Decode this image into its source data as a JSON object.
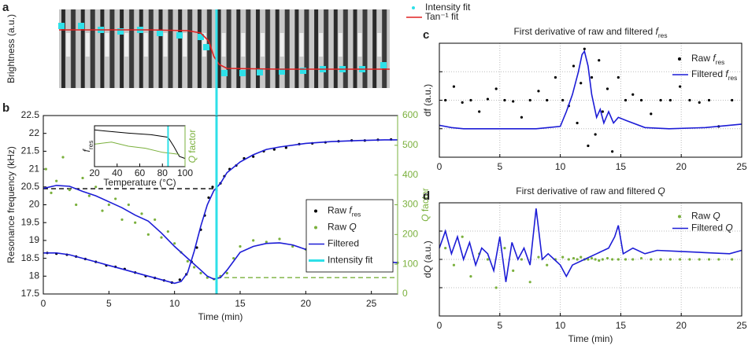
{
  "chart_data": [
    {
      "type": "line",
      "label": "a",
      "ylabel": "Brightness (a.u.)",
      "xlim": [
        0,
        27
      ],
      "ylim": [
        0,
        1
      ],
      "legend": "outside upper right",
      "series": [
        {
          "name": "Intensity fit",
          "type": "scatter",
          "marker": "square",
          "color": "#2ee0e8",
          "x": [
            1.38,
            2.88,
            4.38,
            5.88,
            7.38,
            8.88,
            10.38,
            12.0,
            12.42,
            13.8,
            15.18,
            16.5,
            18.18,
            19.8,
            21.3,
            22.8,
            24.3,
            25.92
          ],
          "values": [
            0.79,
            0.79,
            0.74,
            0.72,
            0.74,
            0.7,
            0.67,
            0.65,
            0.52,
            0.19,
            0.19,
            0.2,
            0.21,
            0.22,
            0.24,
            0.24,
            0.24,
            0.29
          ]
        },
        {
          "name": "Tan⁻¹ fit",
          "type": "line",
          "color": "#e02020",
          "x": [
            1.2,
            8,
            11,
            12,
            12.6,
            13,
            13.4,
            14,
            18,
            26.4
          ],
          "values": [
            0.74,
            0.74,
            0.73,
            0.7,
            0.6,
            0.4,
            0.3,
            0.25,
            0.24,
            0.24
          ]
        }
      ]
    },
    {
      "type": "line",
      "label": "b",
      "xlabel": "Time (min)",
      "ylabel": "Resonance frequency (kHz)",
      "y2label": [
        {
          "text": "Q",
          "italic": true
        },
        " factor"
      ],
      "y2color": "#7ab03c",
      "xlim": [
        0,
        27
      ],
      "xticks": [
        0,
        5,
        10,
        15,
        20,
        25
      ],
      "ylim": [
        17.5,
        22.5
      ],
      "yticks": [
        17.5,
        18,
        18.5,
        19,
        19.5,
        20,
        20.5,
        21,
        21.5,
        22,
        22.5
      ],
      "y2lim": [
        0,
        600
      ],
      "y2ticks": [
        0,
        100,
        200,
        300,
        400,
        500,
        600
      ],
      "legend": "lower right",
      "series": [
        {
          "name": [
            "Raw ",
            {
              "text": "f",
              "italic": true
            },
            {
              "text": "res",
              "sub": true
            }
          ],
          "type": "scatter",
          "color": "#000000",
          "x": [
            0.3,
            1,
            1.8,
            2.5,
            3.2,
            4,
            4.8,
            5.5,
            6.2,
            7,
            7.8,
            8.5,
            9.2,
            9.8,
            10.4,
            10.9,
            11.3,
            11.7,
            12,
            12.3,
            12.6,
            12.9,
            13.2,
            13.5,
            13.8,
            14.2,
            14.7,
            15.3,
            16,
            16.8,
            17.6,
            18.5,
            19.5,
            20.5,
            21.5,
            22.5,
            23.5,
            24.5,
            25.5,
            26.5
          ],
          "values": [
            18.65,
            18.63,
            18.6,
            18.55,
            18.48,
            18.4,
            18.3,
            18.26,
            18.2,
            18.1,
            18.0,
            17.95,
            17.88,
            17.82,
            17.9,
            18.05,
            18.4,
            18.8,
            19.3,
            19.7,
            20.2,
            20.5,
            20.4,
            20.6,
            20.8,
            21.0,
            21.1,
            21.3,
            21.35,
            21.5,
            21.55,
            21.6,
            21.7,
            21.72,
            21.75,
            21.78,
            21.8,
            21.8,
            21.82,
            21.83
          ]
        },
        {
          "name": [
            "Raw ",
            {
              "text": "Q",
              "italic": true
            }
          ],
          "type": "scatter",
          "color": "#7ab03c",
          "axis": "y2",
          "x": [
            0.2,
            0.6,
            1,
            1.5,
            2,
            2.5,
            3,
            3.5,
            4,
            4.5,
            5,
            5.5,
            6,
            6.5,
            7,
            7.5,
            8,
            8.5,
            9,
            9.5,
            10,
            10.5,
            11,
            11.5,
            12,
            12.5,
            13,
            13.5,
            14,
            14.5,
            15,
            16,
            17,
            18,
            19,
            20,
            21,
            22,
            23,
            24,
            25,
            26,
            27
          ],
          "values": [
            420,
            340,
            380,
            460,
            350,
            300,
            390,
            330,
            360,
            280,
            300,
            320,
            250,
            300,
            240,
            270,
            200,
            250,
            190,
            210,
            170,
            140,
            110,
            90,
            70,
            55,
            50,
            60,
            70,
            120,
            160,
            180,
            175,
            185,
            160,
            150,
            140,
            130,
            125,
            120,
            115,
            110,
            105
          ]
        },
        {
          "name": "Filtered",
          "type": "line",
          "color": "#1c1cd6",
          "x": [
            0,
            1,
            2,
            3,
            4,
            5,
            6,
            7,
            8,
            9,
            10,
            10.5,
            11,
            11.5,
            12,
            12.5,
            13,
            13.5,
            14,
            15,
            16,
            17,
            18,
            20,
            22,
            24,
            26,
            27
          ],
          "values": [
            18.65,
            18.65,
            18.6,
            18.5,
            18.4,
            18.3,
            18.2,
            18.1,
            18.0,
            17.9,
            17.8,
            17.85,
            18.1,
            18.7,
            19.4,
            20.0,
            20.4,
            20.6,
            20.9,
            21.2,
            21.4,
            21.55,
            21.62,
            21.72,
            21.77,
            21.8,
            21.82,
            21.82
          ]
        },
        {
          "type": "line",
          "color": "#1c1cd6",
          "axis": "y2",
          "x": [
            0,
            1,
            2,
            3,
            4,
            5,
            6,
            7,
            8,
            9,
            10,
            11,
            12,
            12.5,
            13,
            13.5,
            14,
            15,
            16,
            17,
            18,
            19,
            20,
            22,
            24,
            26,
            27
          ],
          "values": [
            355,
            365,
            362,
            345,
            330,
            310,
            290,
            265,
            245,
            205,
            160,
            120,
            80,
            60,
            50,
            55,
            80,
            140,
            160,
            170,
            172,
            165,
            150,
            130,
            120,
            110,
            105
          ]
        },
        {
          "name": "Intensity fit",
          "type": "vline",
          "color": "#2ee0e8",
          "x": [
            13.2
          ]
        }
      ],
      "refs": [
        {
          "axis": "y",
          "value": 20.45,
          "x": [
            0,
            13.2
          ],
          "color": "#000000"
        },
        {
          "axis": "y2",
          "value": 55,
          "x": [
            13.2,
            27
          ],
          "color": "#7ab03c"
        }
      ]
    },
    {
      "type": "line",
      "xlabel": "Temperature (°C)",
      "ylabel": [
        {
          "text": "f",
          "italic": true
        },
        {
          "text": "res",
          "sub": true
        }
      ],
      "y2label": [
        {
          "text": "Q",
          "italic": true
        },
        " factor"
      ],
      "y2color": "#7ab03c",
      "xlim": [
        20,
        100
      ],
      "xticks": [
        20,
        40,
        60,
        80,
        100
      ],
      "ylim": [
        0,
        1
      ],
      "series": [
        {
          "type": "line",
          "color": "#000000",
          "x": [
            20,
            30,
            50,
            70,
            85,
            90,
            95,
            100
          ],
          "values": [
            0.9,
            0.87,
            0.82,
            0.78,
            0.72,
            0.5,
            0.25,
            0.2
          ]
        },
        {
          "type": "line",
          "color": "#7ab03c",
          "x": [
            20,
            35,
            50,
            65,
            80,
            95
          ],
          "values": [
            0.55,
            0.6,
            0.5,
            0.45,
            0.35,
            0.3
          ]
        },
        {
          "type": "vline",
          "color": "#2ee0e8",
          "x": [
            85
          ]
        }
      ]
    },
    {
      "type": "line",
      "label": "c",
      "title": [
        "First derivative of raw and filtered ",
        {
          "text": "f",
          "italic": true
        },
        {
          "text": "res",
          "sub": true
        }
      ],
      "ylabel": "df (a.u.)",
      "xlim": [
        0,
        25
      ],
      "xticks": [
        0,
        5,
        10,
        15,
        20,
        25
      ],
      "ylim": [
        0,
        1
      ],
      "yticks": [
        0.25,
        0.5,
        0.75
      ],
      "grid": true,
      "ytick_labels": false,
      "legend": "upper right",
      "series": [
        {
          "name": [
            "Raw ",
            {
              "text": "f",
              "italic": true
            },
            {
              "text": "res",
              "sub": true
            }
          ],
          "type": "scatter",
          "color": "#000000",
          "x": [
            0.5,
            1.2,
            1.9,
            2.6,
            3.3,
            4,
            4.7,
            5.4,
            6.1,
            6.8,
            7.5,
            8.2,
            8.9,
            9.6,
            10.2,
            10.7,
            11.1,
            11.4,
            11.7,
            12,
            12.3,
            12.6,
            12.9,
            13.2,
            13.5,
            13.9,
            14.3,
            14.8,
            15.4,
            16,
            16.7,
            17.5,
            18.3,
            19.1,
            19.9,
            20.7,
            21.5,
            22.3,
            23.1,
            24.2
          ],
          "values": [
            0.5,
            0.62,
            0.48,
            0.5,
            0.4,
            0.51,
            0.6,
            0.5,
            0.49,
            0.35,
            0.5,
            0.58,
            0.5,
            0.7,
            0.5,
            0.45,
            0.8,
            0.3,
            0.65,
            0.95,
            0.1,
            0.7,
            0.2,
            0.85,
            0.4,
            0.6,
            0.05,
            0.7,
            0.5,
            0.55,
            0.5,
            0.38,
            0.5,
            0.5,
            0.62,
            0.5,
            0.48,
            0.5,
            0.27,
            0.5
          ]
        },
        {
          "name": [
            "Filtered ",
            {
              "text": "f",
              "italic": true
            },
            {
              "text": "res",
              "sub": true
            }
          ],
          "type": "line",
          "color": "#1c1cd6",
          "x": [
            0,
            1,
            2,
            4,
            6,
            8,
            9,
            10,
            10.5,
            11,
            11.5,
            11.8,
            12,
            12.3,
            12.6,
            13,
            13.3,
            13.6,
            14,
            14.4,
            14.8,
            15.5,
            17,
            19,
            22,
            25
          ],
          "values": [
            0.28,
            0.26,
            0.25,
            0.25,
            0.25,
            0.25,
            0.26,
            0.27,
            0.4,
            0.55,
            0.75,
            0.9,
            0.93,
            0.8,
            0.55,
            0.35,
            0.42,
            0.3,
            0.4,
            0.3,
            0.35,
            0.32,
            0.26,
            0.25,
            0.26,
            0.29
          ]
        }
      ]
    },
    {
      "type": "line",
      "label": "d",
      "title": [
        "First derivative of raw and filtered ",
        {
          "text": "Q",
          "italic": true
        }
      ],
      "xlabel": "Time (min)",
      "ylabel": [
        "d",
        {
          "text": "Q",
          "italic": true
        },
        " (a.u.)"
      ],
      "xlim": [
        0,
        25
      ],
      "xticks": [
        0,
        5,
        10,
        15,
        20,
        25
      ],
      "ylim": [
        0,
        1
      ],
      "yticks": [
        0.25,
        0.5,
        0.75
      ],
      "grid": true,
      "ytick_labels": false,
      "legend": "upper right",
      "series": [
        {
          "name": [
            "Raw ",
            {
              "text": "Q",
              "italic": true
            }
          ],
          "type": "scatter",
          "color": "#7ab03c",
          "x": [
            0.5,
            1.2,
            1.9,
            2.6,
            3.3,
            4,
            4.7,
            5.4,
            6.1,
            6.8,
            7.5,
            8.2,
            8.9,
            9.6,
            10.2,
            10.7,
            11.1,
            11.4,
            11.7,
            12,
            12.3,
            12.6,
            12.9,
            13.2,
            13.5,
            13.9,
            14.3,
            14.8,
            15.4,
            16,
            16.7,
            17.5,
            18.3,
            19.1,
            19.9,
            20.7,
            21.5,
            22.3,
            23.1,
            24.2
          ],
          "values": [
            0.6,
            0.45,
            0.7,
            0.35,
            0.55,
            0.5,
            0.25,
            0.6,
            0.4,
            0.5,
            0.3,
            0.52,
            0.45,
            0.5,
            0.52,
            0.5,
            0.51,
            0.5,
            0.52,
            0.5,
            0.5,
            0.51,
            0.5,
            0.49,
            0.5,
            0.51,
            0.5,
            0.5,
            0.5,
            0.5,
            0.51,
            0.5,
            0.5,
            0.5,
            0.5,
            0.5,
            0.5,
            0.5,
            0.5,
            0.5
          ]
        },
        {
          "name": [
            "Filtered ",
            {
              "text": "Q",
              "italic": true
            }
          ],
          "type": "line",
          "color": "#1c1cd6",
          "x": [
            0,
            0.5,
            1,
            1.5,
            2,
            2.5,
            3,
            3.5,
            4,
            4.5,
            5,
            5.5,
            6,
            6.5,
            7,
            7.5,
            8,
            8.5,
            9,
            9.5,
            10,
            10.5,
            11,
            12,
            13,
            14,
            14.5,
            14.8,
            15.2,
            16,
            17,
            18,
            20,
            22,
            24,
            25
          ],
          "values": [
            0.6,
            0.75,
            0.55,
            0.7,
            0.5,
            0.65,
            0.45,
            0.6,
            0.55,
            0.4,
            0.7,
            0.3,
            0.65,
            0.5,
            0.6,
            0.45,
            0.95,
            0.5,
            0.55,
            0.5,
            0.45,
            0.35,
            0.45,
            0.5,
            0.55,
            0.6,
            0.7,
            0.8,
            0.55,
            0.6,
            0.55,
            0.58,
            0.57,
            0.56,
            0.55,
            0.58
          ]
        }
      ]
    }
  ]
}
